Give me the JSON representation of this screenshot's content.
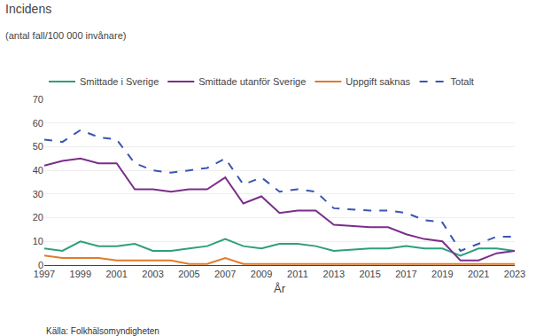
{
  "chart_data": {
    "type": "line",
    "title": "Incidens",
    "subtitle": "(antal fall/100 000 invånare)",
    "x_label": "År",
    "caption": "Källa: Folkhälsomyndigheten",
    "x": [
      1997,
      1998,
      1999,
      2000,
      2001,
      2002,
      2003,
      2004,
      2005,
      2006,
      2007,
      2008,
      2009,
      2010,
      2011,
      2012,
      2013,
      2015,
      2016,
      2017,
      2018,
      2019,
      2020,
      2021,
      2022,
      2023
    ],
    "series": [
      {
        "name": "Smittade i Sverige",
        "color": "#2e9e7e",
        "line_style": "solid",
        "values": [
          7,
          6,
          10,
          8,
          8,
          9,
          6,
          6,
          7,
          8,
          11,
          8,
          7,
          9,
          9,
          8,
          6,
          7,
          7,
          8,
          7,
          7,
          4,
          7,
          7,
          6
        ]
      },
      {
        "name": "Smittade utanför Sverige",
        "color": "#7b2d8b",
        "line_style": "solid",
        "values": [
          42,
          44,
          45,
          43,
          43,
          32,
          32,
          31,
          32,
          32,
          37,
          26,
          29,
          22,
          23,
          23,
          17,
          16,
          16,
          13,
          11,
          10,
          2,
          2,
          5,
          6
        ]
      },
      {
        "name": "Uppgift saknas",
        "color": "#e07b2a",
        "line_style": "solid",
        "values": [
          4,
          3,
          3,
          3,
          2,
          2,
          2,
          2,
          0.5,
          0.5,
          3,
          0.5,
          0.5,
          0.5,
          0.5,
          0.5,
          0.5,
          0.5,
          0.5,
          0.5,
          0.5,
          0.5,
          0.3,
          0.3,
          0.3,
          0.5
        ]
      },
      {
        "name": "Totalt",
        "color": "#3a56b0",
        "line_style": "dashed",
        "values": [
          53,
          52,
          57,
          54,
          53,
          43,
          40,
          39,
          40,
          41,
          45,
          34,
          37,
          31,
          32,
          31,
          24,
          23,
          23,
          22,
          19,
          18,
          6,
          9,
          12,
          12
        ]
      }
    ],
    "xlim": [
      1997,
      2023
    ],
    "xticks": [
      1997,
      1999,
      2001,
      2003,
      2005,
      2007,
      2009,
      2011,
      2013,
      2015,
      2017,
      2019,
      2021,
      2023
    ],
    "ylim": [
      0,
      70
    ],
    "yticks": [
      0,
      10,
      20,
      30,
      40,
      50,
      60,
      70
    ],
    "grid": true,
    "legend": "top"
  }
}
